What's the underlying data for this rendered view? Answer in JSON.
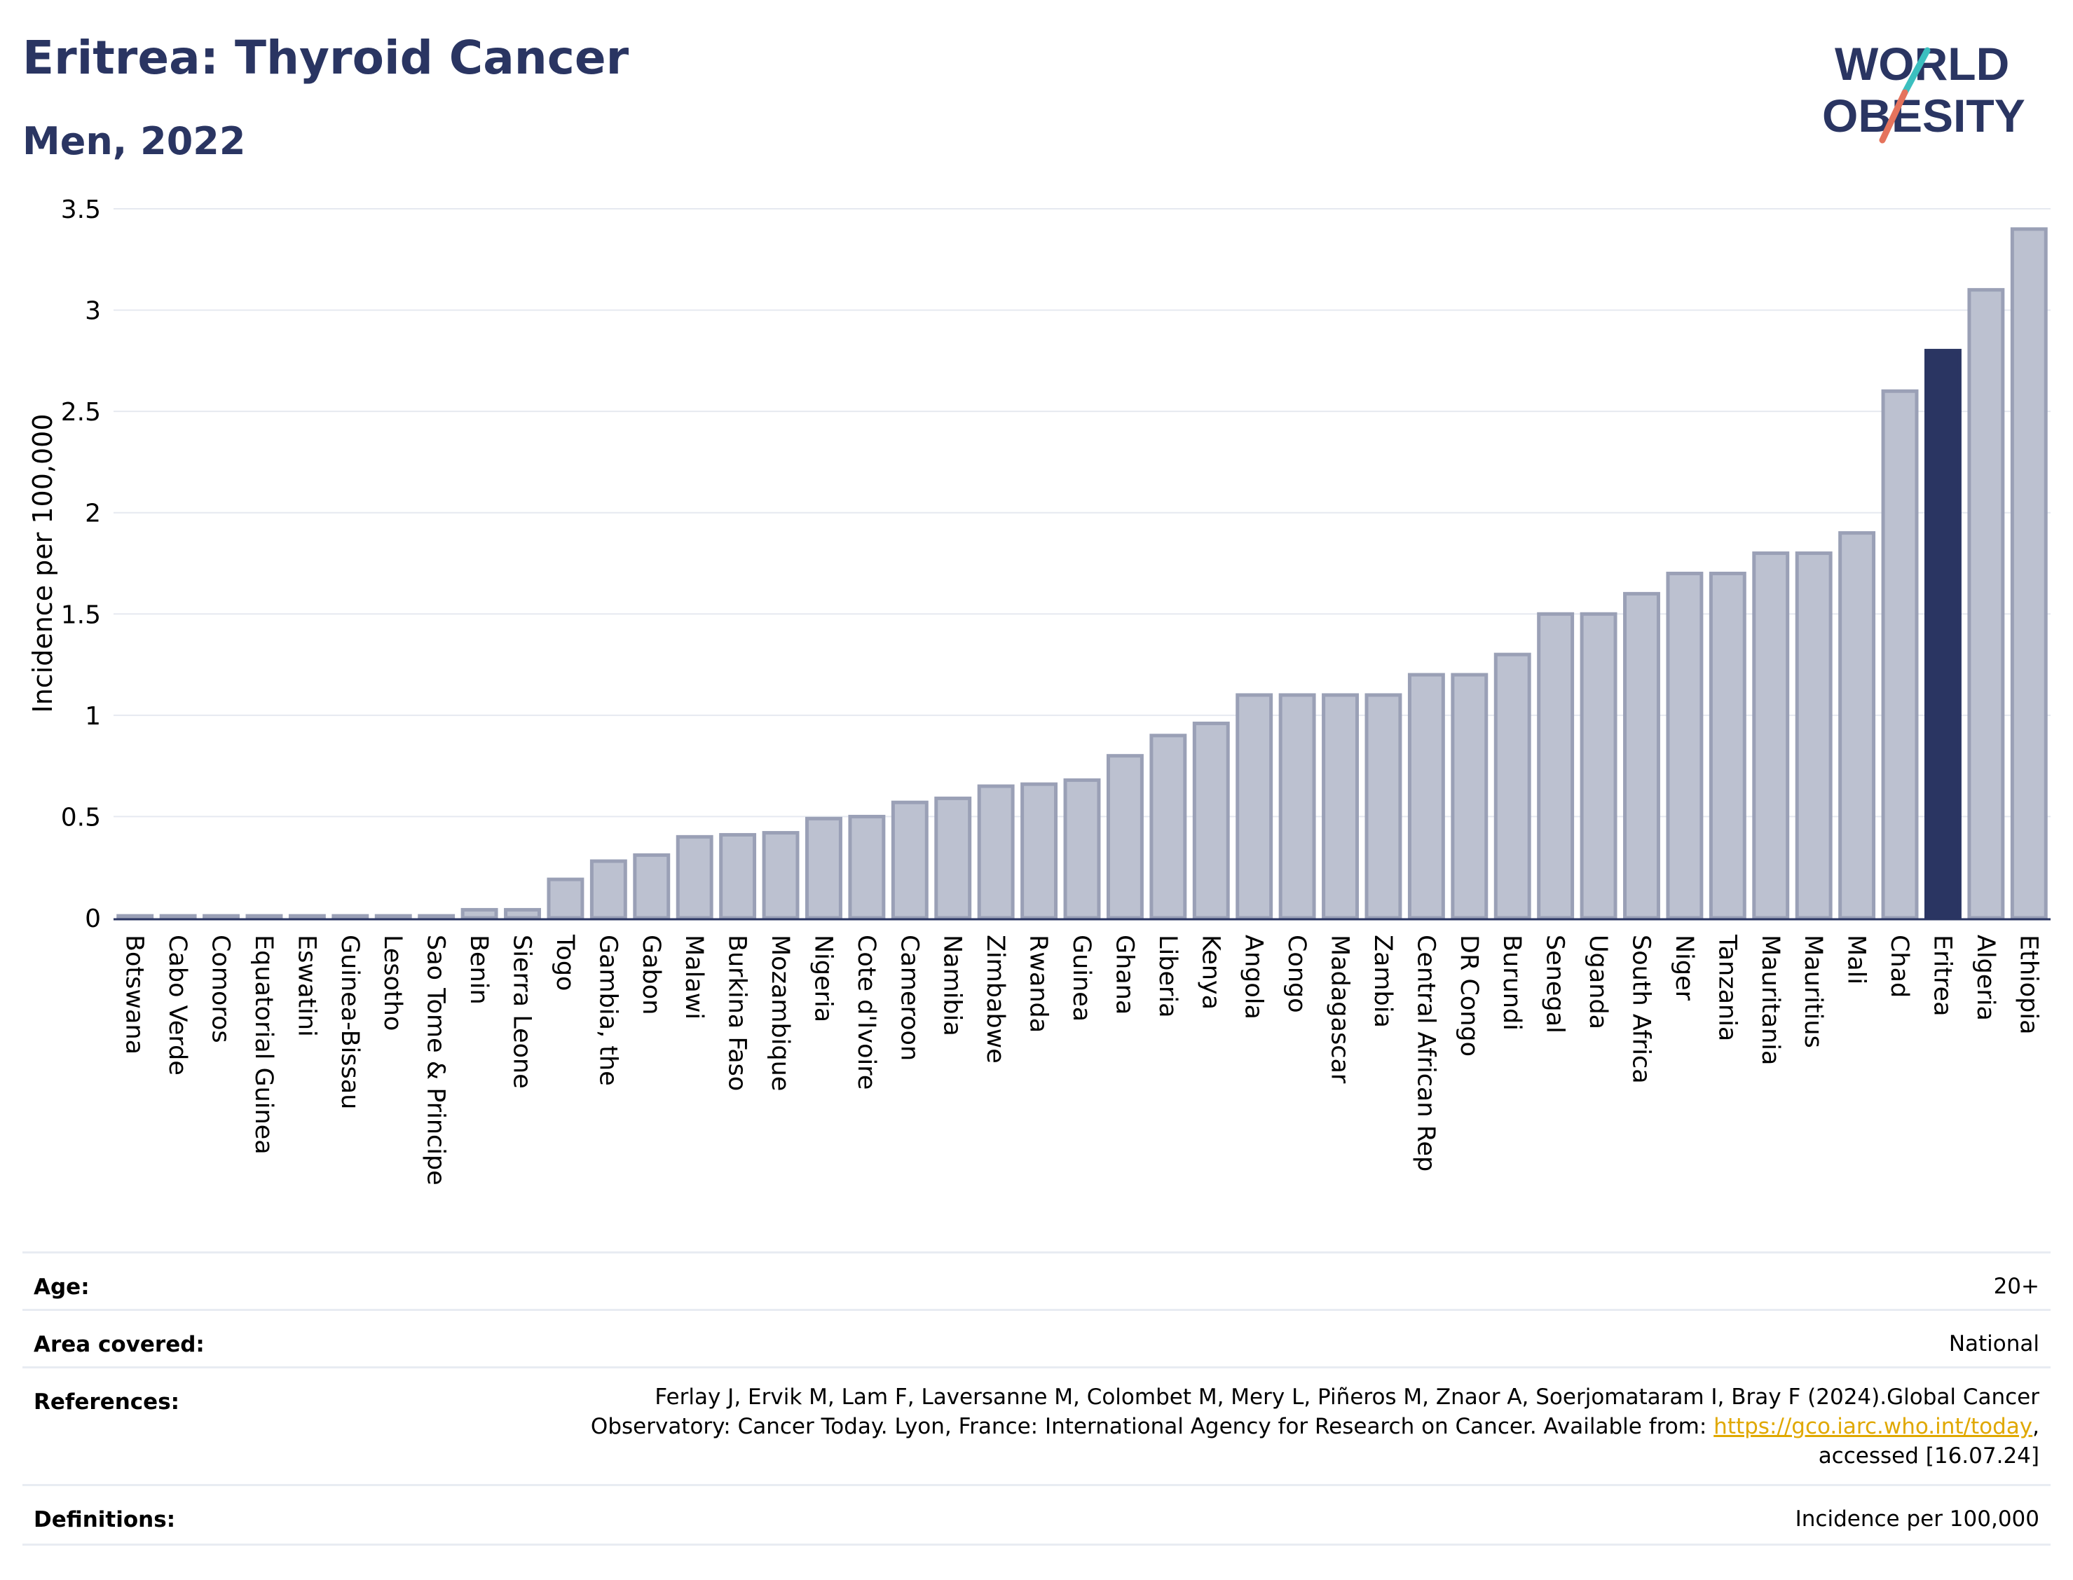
{
  "header": {
    "title": "Eritrea: Thyroid Cancer",
    "subtitle": "Men, 2022",
    "logo_line1": "WORLD",
    "logo_line2": "OBESITY"
  },
  "colors": {
    "bar": "#bcc1d0",
    "bar_border": "#9aa0b6",
    "highlight": "#2a3562",
    "grid": "#e6e9f0",
    "accent_teal": "#3bbfbf",
    "accent_coral": "#e5735c"
  },
  "chart_data": {
    "type": "bar",
    "ylabel": "Incidence per 100,000",
    "ylim": [
      0,
      3.5
    ],
    "yticks": [
      "0",
      "0.5",
      "1",
      "1.5",
      "2",
      "2.5",
      "3",
      "3.5"
    ],
    "highlight": "Eritrea",
    "categories": [
      "Botswana",
      "Cabo Verde",
      "Comoros",
      "Equatorial Guinea",
      "Eswatini",
      "Guinea-Bissau",
      "Lesotho",
      "Sao Tome & Principe",
      "Benin",
      "Sierra Leone",
      "Togo",
      "Gambia, the",
      "Gabon",
      "Malawi",
      "Burkina Faso",
      "Mozambique",
      "Nigeria",
      "Cote d'Ivoire",
      "Cameroon",
      "Namibia",
      "Zimbabwe",
      "Rwanda",
      "Guinea",
      "Ghana",
      "Liberia",
      "Kenya",
      "Angola",
      "Congo",
      "Madagascar",
      "Zambia",
      "Central African Rep",
      "DR Congo",
      "Burundi",
      "Senegal",
      "Uganda",
      "South Africa",
      "Niger",
      "Tanzania",
      "Mauritania",
      "Mauritius",
      "Mali",
      "Chad",
      "Eritrea",
      "Algeria",
      "Ethiopia"
    ],
    "values": [
      0.01,
      0.01,
      0.01,
      0.01,
      0.01,
      0.01,
      0.01,
      0.01,
      0.04,
      0.04,
      0.19,
      0.28,
      0.31,
      0.4,
      0.41,
      0.42,
      0.49,
      0.5,
      0.57,
      0.59,
      0.65,
      0.66,
      0.68,
      0.8,
      0.9,
      0.96,
      1.1,
      1.1,
      1.1,
      1.1,
      1.2,
      1.2,
      1.3,
      1.5,
      1.5,
      1.6,
      1.7,
      1.7,
      1.8,
      1.8,
      1.9,
      2.6,
      2.8,
      3.1,
      3.4
    ]
  },
  "meta": {
    "age_label": "Age:",
    "age_value": "20+",
    "area_label": "Area covered:",
    "area_value": "National",
    "references_label": "References:",
    "references_line1": "Ferlay J, Ervik M, Lam F, Laversanne M, Colombet M, Mery L, Piñeros M, Znaor A, Soerjomataram I, Bray F (2024).Global Cancer",
    "references_line2_pre": "Observatory: Cancer Today. Lyon, France: International Agency for Research on Cancer. Available from: ",
    "references_link": "https://gco.iarc.who.int/today",
    "references_line2_post": ",",
    "references_line3": "accessed [16.07.24]",
    "definitions_label": "Definitions:",
    "definitions_value": "Incidence per 100,000"
  }
}
